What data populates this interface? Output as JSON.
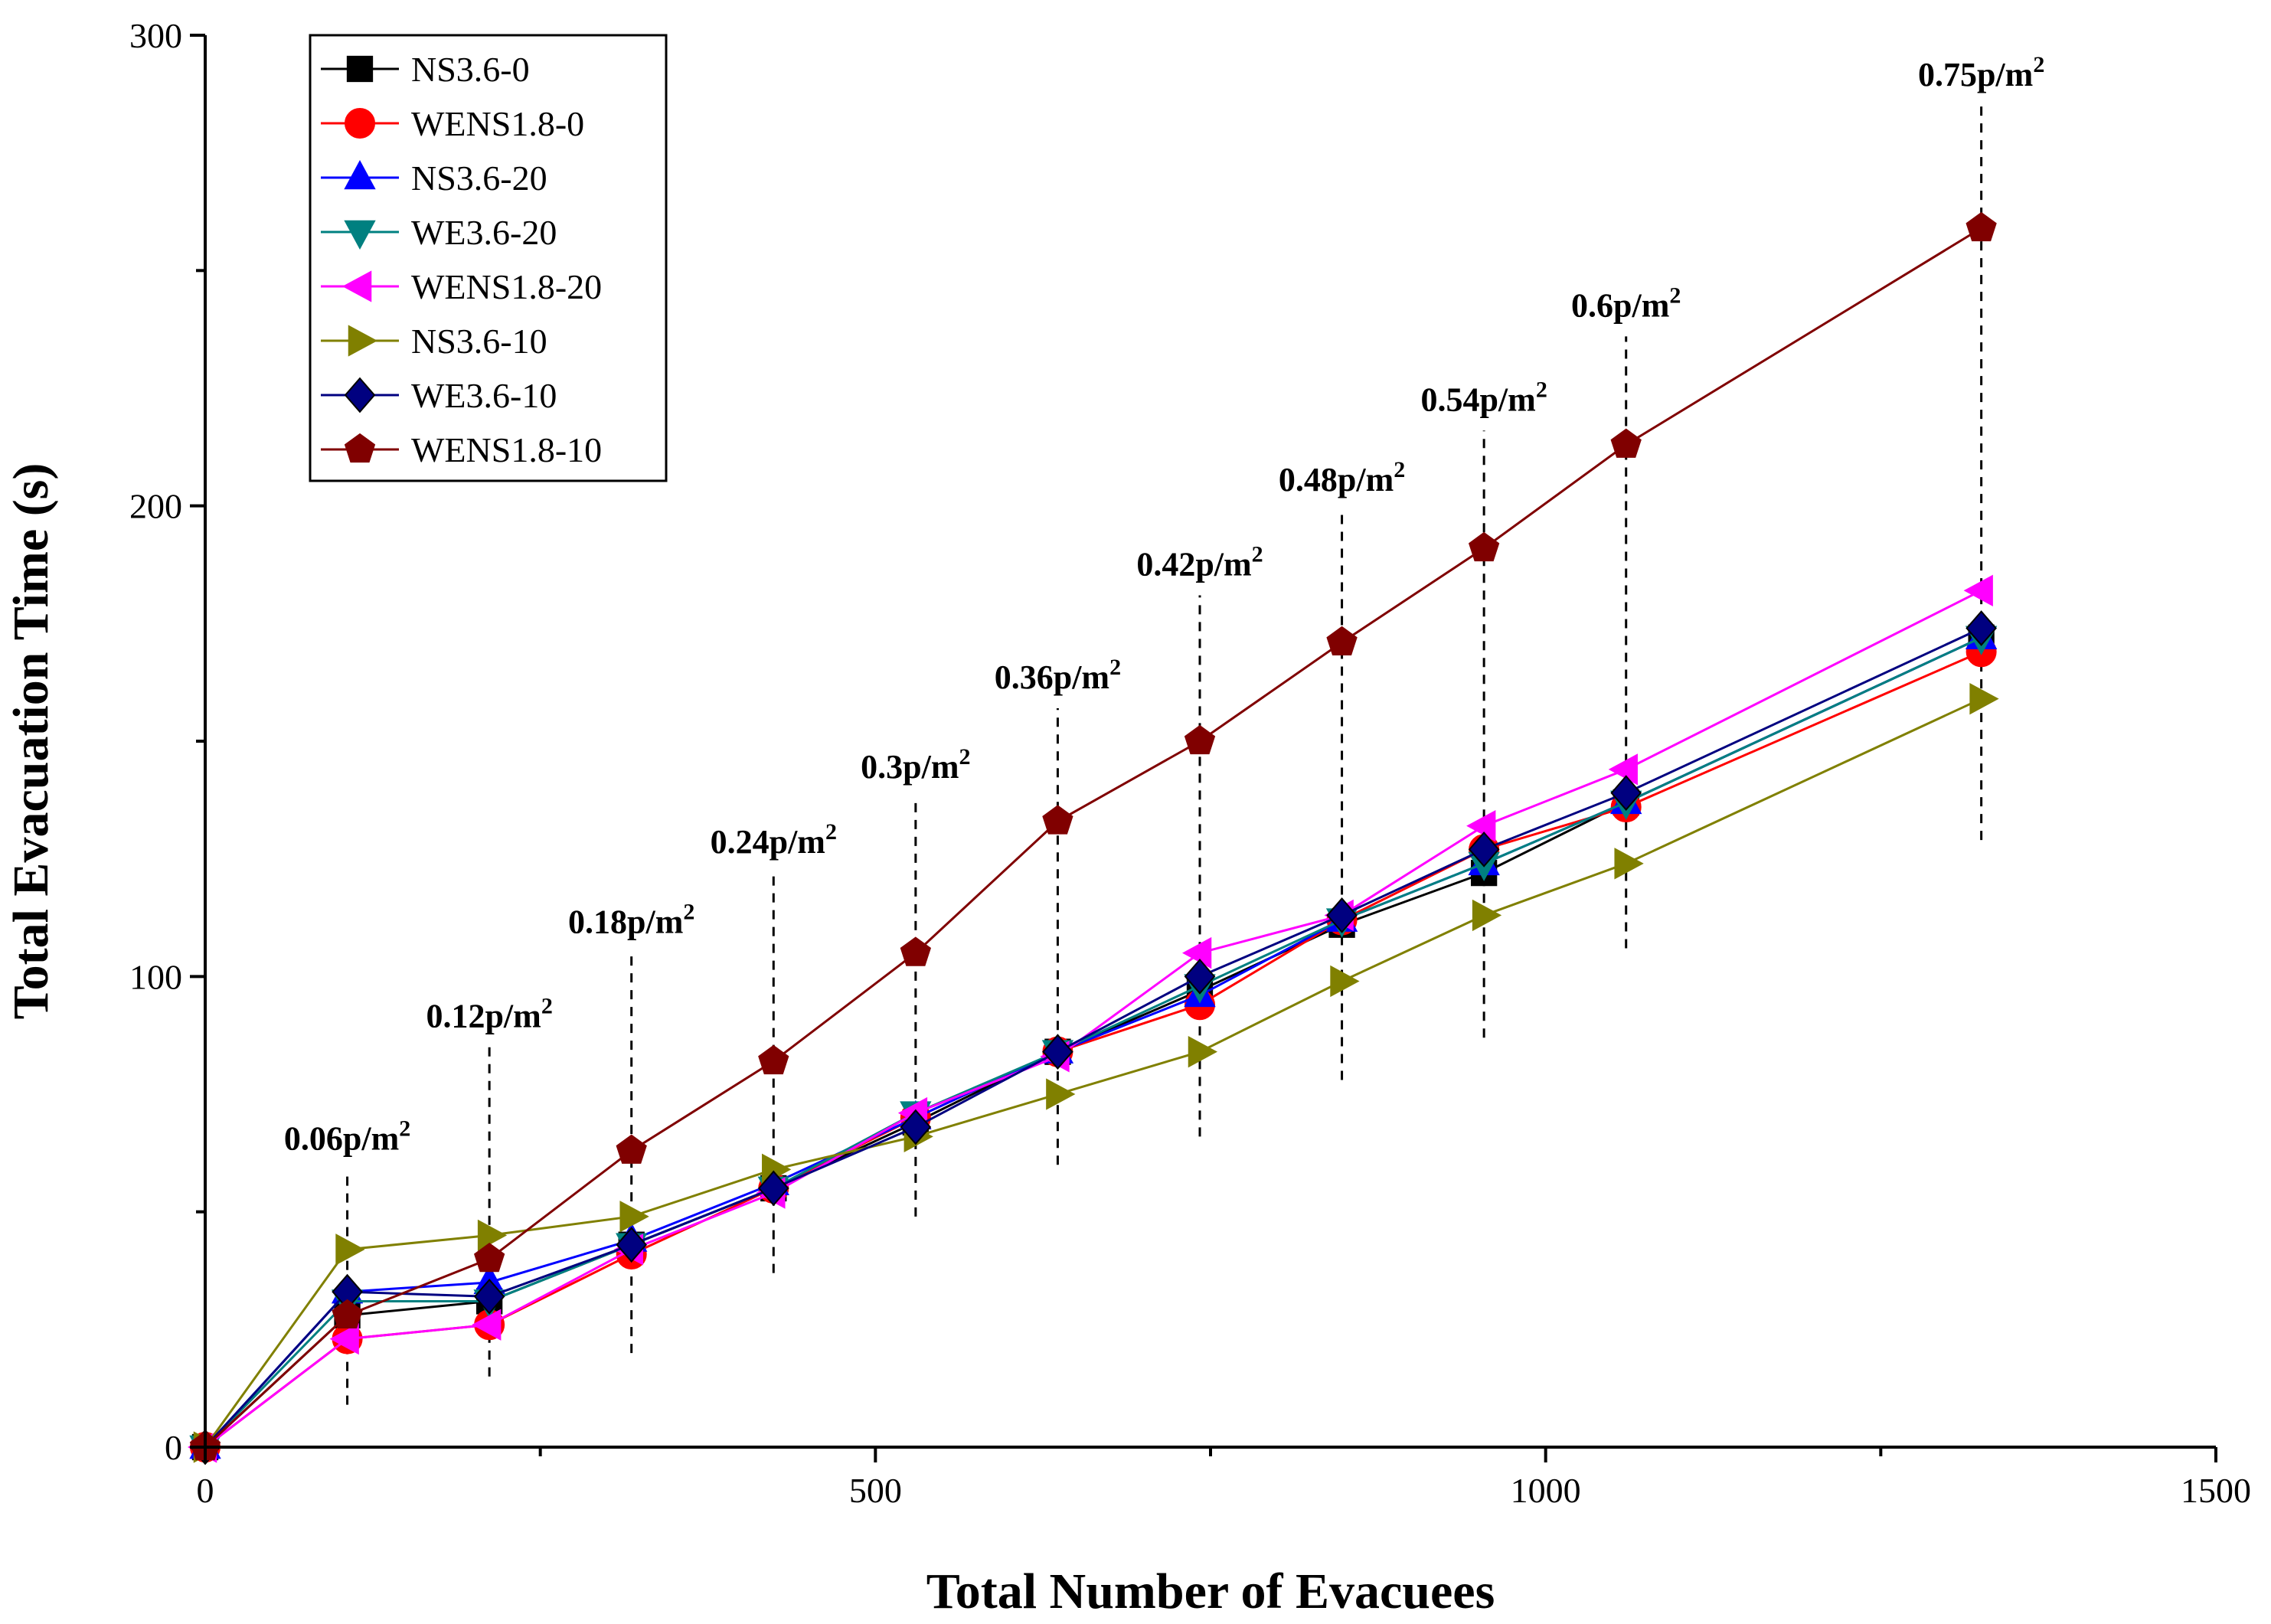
{
  "chart_data": {
    "type": "line",
    "title": "",
    "xlabel": "Total Number of Evacuees",
    "ylabel": "Total Evacuation Time (s)",
    "xlim": [
      0,
      1500
    ],
    "ylim": [
      0,
      300
    ],
    "x_ticks": [
      0,
      500,
      1000,
      1500
    ],
    "y_ticks": [
      0,
      100,
      200,
      300
    ],
    "grid": false,
    "legend_position": "top-left",
    "series": [
      {
        "name": "NS3.6-0",
        "color": "#000000",
        "marker": "square",
        "x": [
          0,
          106,
          212,
          318,
          424,
          530,
          636,
          742,
          848,
          954,
          1060,
          1325
        ],
        "y": [
          0,
          28,
          31,
          43,
          55,
          69,
          84,
          97,
          111,
          122,
          137,
          172
        ]
      },
      {
        "name": "WENS1.8-0",
        "color": "#ff0000",
        "marker": "circle",
        "x": [
          0,
          106,
          212,
          318,
          424,
          530,
          636,
          742,
          848,
          954,
          1060,
          1325
        ],
        "y": [
          0,
          23,
          26,
          41,
          55,
          70,
          84,
          94,
          112,
          127,
          136,
          169
        ]
      },
      {
        "name": "NS3.6-20",
        "color": "#0000ff",
        "marker": "triangle-up",
        "x": [
          0,
          106,
          212,
          318,
          424,
          530,
          636,
          742,
          848,
          954,
          1060,
          1325
        ],
        "y": [
          0,
          33,
          35,
          44,
          56,
          70,
          84,
          96,
          112,
          124,
          137,
          172
        ]
      },
      {
        "name": "WE3.6-20",
        "color": "#008080",
        "marker": "triangle-down",
        "x": [
          0,
          106,
          212,
          318,
          424,
          530,
          636,
          742,
          848,
          954,
          1060,
          1325
        ],
        "y": [
          0,
          31,
          31,
          43,
          55,
          71,
          84,
          98,
          112,
          124,
          137,
          172
        ]
      },
      {
        "name": "WENS1.8-20",
        "color": "#ff00ff",
        "marker": "triangle-left",
        "x": [
          0,
          106,
          212,
          318,
          424,
          530,
          636,
          742,
          848,
          954,
          1060,
          1325
        ],
        "y": [
          0,
          23,
          26,
          42,
          54,
          71,
          83,
          105,
          113,
          132,
          144,
          182
        ]
      },
      {
        "name": "NS3.6-10",
        "color": "#808000",
        "marker": "triangle-right",
        "x": [
          0,
          106,
          212,
          318,
          424,
          530,
          636,
          742,
          848,
          954,
          1060,
          1325
        ],
        "y": [
          0,
          42,
          45,
          49,
          59,
          66,
          75,
          84,
          99,
          113,
          124,
          159
        ]
      },
      {
        "name": "WE3.6-10",
        "color": "#000080",
        "marker": "diamond",
        "x": [
          0,
          106,
          212,
          318,
          424,
          530,
          636,
          742,
          848,
          954,
          1060,
          1325
        ],
        "y": [
          0,
          33,
          32,
          43,
          55,
          68,
          84,
          100,
          113,
          127,
          139,
          174
        ]
      },
      {
        "name": "WENS1.8-10",
        "color": "#800000",
        "marker": "pentagon",
        "x": [
          0,
          106,
          212,
          318,
          424,
          530,
          636,
          742,
          848,
          954,
          1060,
          1325
        ],
        "y": [
          0,
          28,
          40,
          63,
          82,
          105,
          133,
          150,
          171,
          191,
          213,
          259
        ]
      }
    ],
    "annotations": [
      {
        "x": 106,
        "text": "0.06p/m",
        "sup": "2",
        "y_range": [
          9,
          59
        ]
      },
      {
        "x": 212,
        "text": "0.12p/m",
        "sup": "2",
        "y_range": [
          15,
          85
        ]
      },
      {
        "x": 318,
        "text": "0.18p/m",
        "sup": "2",
        "y_range": [
          20,
          105
        ]
      },
      {
        "x": 424,
        "text": "0.24p/m",
        "sup": "2",
        "y_range": [
          37,
          122
        ]
      },
      {
        "x": 530,
        "text": "0.3p/m",
        "sup": "2",
        "y_range": [
          49,
          138
        ]
      },
      {
        "x": 636,
        "text": "0.36p/m",
        "sup": "2",
        "y_range": [
          60,
          157
        ]
      },
      {
        "x": 742,
        "text": "0.42p/m",
        "sup": "2",
        "y_range": [
          66,
          181
        ]
      },
      {
        "x": 848,
        "text": "0.48p/m",
        "sup": "2",
        "y_range": [
          78,
          199
        ]
      },
      {
        "x": 954,
        "text": "0.54p/m",
        "sup": "2",
        "y_range": [
          87,
          216
        ]
      },
      {
        "x": 1060,
        "text": "0.6p/m",
        "sup": "2",
        "y_range": [
          106,
          236
        ]
      },
      {
        "x": 1325,
        "text": "0.75p/m",
        "sup": "2",
        "y_range": [
          129,
          285
        ]
      }
    ]
  }
}
